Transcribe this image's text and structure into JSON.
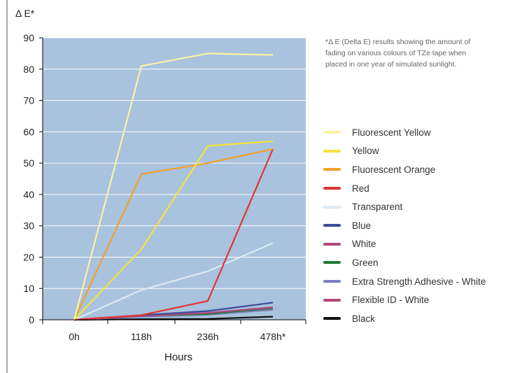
{
  "chart_data": {
    "type": "line",
    "ylabel": "Δ E*",
    "xlabel": "Hours",
    "categories": [
      "0h",
      "118h",
      "236h",
      "478h*"
    ],
    "ylim": [
      0,
      90
    ],
    "yticks": [
      0,
      10,
      20,
      30,
      40,
      50,
      60,
      70,
      80,
      90
    ],
    "grid": true,
    "background": "#a9c2de",
    "legend_position": "right",
    "note": "*Δ E (Delta E) results showing the amount of fading on various colours of TZe tape when placed in one year of simulated sunlight.",
    "series": [
      {
        "name": "Fluorescent Yellow",
        "color": "#fbf2a4",
        "values": [
          0,
          81,
          85,
          84.5
        ]
      },
      {
        "name": "Yellow",
        "color": "#f5e33a",
        "values": [
          0,
          22.5,
          55.5,
          57
        ]
      },
      {
        "name": "Fluorescent Orange",
        "color": "#f4a129",
        "values": [
          0,
          46.5,
          50,
          54.5
        ]
      },
      {
        "name": "Red",
        "color": "#e23432",
        "values": [
          0,
          1.5,
          6,
          54.5
        ]
      },
      {
        "name": "Transparent",
        "color": "#dce9f3",
        "values": [
          0,
          9.5,
          15.5,
          24.5
        ]
      },
      {
        "name": "Blue",
        "color": "#3b4b96",
        "values": [
          0,
          1.5,
          2.8,
          5.5
        ]
      },
      {
        "name": "White",
        "color": "#b0487c",
        "values": [
          0,
          1.2,
          2.2,
          4
        ]
      },
      {
        "name": "Green",
        "color": "#1f7a3b",
        "values": [
          0,
          1.3,
          1.8,
          3.8
        ]
      },
      {
        "name": "Extra Strength Adhesive - White",
        "color": "#7a80bc",
        "values": [
          0,
          1,
          1.6,
          3.2
        ]
      },
      {
        "name": "Flexible ID - White",
        "color": "#b14677",
        "values": [
          0,
          1.1,
          2,
          3.5
        ]
      },
      {
        "name": "Black",
        "color": "#111111",
        "values": [
          0,
          0.2,
          0.3,
          1
        ]
      }
    ]
  }
}
